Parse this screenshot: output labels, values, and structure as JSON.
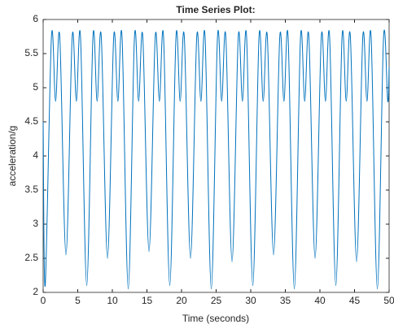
{
  "chart_data": {
    "type": "line",
    "title": "Time Series Plot:",
    "x_label": "Time (seconds)",
    "y_label": "acceleration/g",
    "series": [
      {
        "color": "#0072bd",
        "x": [
          0,
          0.3,
          1.2,
          1.8,
          2.4,
          3.3,
          4.2,
          4.8,
          5.4,
          6.3,
          7.2,
          7.8,
          8.4,
          9.3,
          10.2,
          10.8,
          11.4,
          12.3,
          13.2,
          13.8,
          14.4,
          15.3,
          16.2,
          16.8,
          17.4,
          18.3,
          19.2,
          19.8,
          20.4,
          21.3,
          22.2,
          22.8,
          23.4,
          24.3,
          25.2,
          25.8,
          26.4,
          27.3,
          28.2,
          28.8,
          29.4,
          30.3,
          31.2,
          31.8,
          32.4,
          33.3,
          34.2,
          34.8,
          35.4,
          36.3,
          37.2,
          37.8,
          38.4,
          39.3,
          40.2,
          40.8,
          41.4,
          42.3,
          43.2,
          43.8,
          44.4,
          45.3,
          46.2,
          46.8,
          47.4,
          48.3,
          49.2,
          49.8,
          50
        ],
        "values": [
          4.5,
          2.1,
          5.75,
          4.8,
          5.75,
          2.55,
          5.75,
          4.8,
          5.75,
          2.1,
          5.75,
          4.8,
          5.75,
          2.5,
          5.75,
          4.8,
          5.75,
          2.05,
          5.75,
          4.8,
          5.75,
          2.6,
          5.75,
          4.8,
          5.75,
          2.1,
          5.75,
          4.8,
          5.75,
          2.5,
          5.75,
          4.8,
          5.75,
          2.05,
          5.75,
          4.8,
          5.75,
          2.45,
          5.75,
          4.8,
          5.75,
          2.1,
          5.75,
          4.8,
          5.75,
          2.55,
          5.75,
          4.8,
          5.75,
          2.05,
          5.75,
          4.8,
          5.75,
          2.5,
          5.75,
          4.8,
          5.75,
          2.1,
          5.75,
          4.8,
          5.75,
          2.45,
          5.75,
          4.8,
          5.75,
          2.05,
          5.75,
          4.8,
          5.3
        ]
      }
    ],
    "xlim": [
      0,
      50
    ],
    "xticks": [
      0,
      5,
      10,
      15,
      20,
      25,
      30,
      35,
      40,
      45,
      50
    ],
    "ylim": [
      2,
      6
    ],
    "yticks": [
      2,
      2.5,
      3,
      3.5,
      4,
      4.5,
      5,
      5.5,
      6
    ]
  }
}
